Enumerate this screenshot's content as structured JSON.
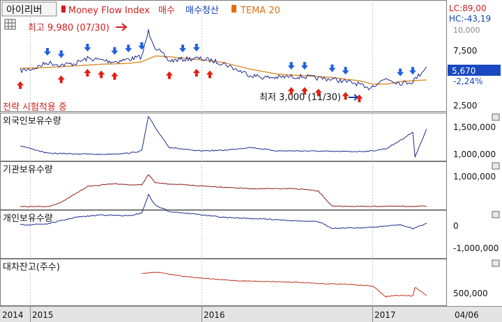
{
  "header": {
    "stock_name": "아이리버",
    "mfi_label": "Money Flow Index",
    "buy_label": "매수",
    "buy_liquidate_label": "매수청산",
    "tema_label": "TEMA 20",
    "lc": "LC:89,00",
    "hc": "HC:-43,19"
  },
  "annotations": {
    "high": "최고 9,980 (07/30)",
    "low": "최저 3,000 (11/30)",
    "strategy": "전략 시험적용 중"
  },
  "price_badge": {
    "value": "5,670",
    "change": "-2,24%"
  },
  "colors": {
    "price_line": "#1e2a8c",
    "tema": "#d98a2a",
    "buy_arrow": "#e02010",
    "sell_arrow": "#2060e0",
    "holdings": "#1e2a8c",
    "inst": "#8b1a1a",
    "loan": "#c0301e",
    "header_red": "#d02020",
    "header_blue": "#1040b0",
    "header_orange": "#e07010"
  },
  "chart_data": [
    {
      "type": "line",
      "title": "아이리버",
      "series": [
        {
          "name": "아이리버",
          "x": [
            "2014-10",
            "2014-11",
            "2014-12",
            "2015-01",
            "2015-02",
            "2015-03",
            "2015-04",
            "2015-05",
            "2015-06",
            "2015-07",
            "2015-07-30",
            "2015-08",
            "2015-09",
            "2015-10",
            "2015-11",
            "2015-12",
            "2016-01",
            "2016-02",
            "2016-03",
            "2016-04",
            "2016-05",
            "2016-06",
            "2016-07",
            "2016-08",
            "2016-09",
            "2016-10",
            "2016-11",
            "2016-11-30",
            "2016-12",
            "2017-01",
            "2017-02",
            "2017-03",
            "2017-04"
          ],
          "values": [
            5200,
            5500,
            6200,
            5900,
            6100,
            6700,
            6500,
            6300,
            6600,
            6900,
            9980,
            8000,
            6400,
            6600,
            6700,
            6500,
            6100,
            5300,
            4700,
            4400,
            4400,
            4500,
            4500,
            4300,
            4200,
            3900,
            3600,
            3000,
            3400,
            4300,
            3700,
            3900,
            5670
          ]
        },
        {
          "name": "TEMA 20",
          "x": [
            "2014-10",
            "2014-12",
            "2015-02",
            "2015-04",
            "2015-06",
            "2015-07",
            "2015-08",
            "2015-09",
            "2015-11",
            "2016-01",
            "2016-03",
            "2016-05",
            "2016-07",
            "2016-09",
            "2016-11",
            "2016-12",
            "2017-01",
            "2017-02",
            "2017-03",
            "2017-04"
          ],
          "values": [
            5500,
            5600,
            5800,
            6000,
            6100,
            6300,
            7000,
            6900,
            6600,
            6200,
            5400,
            4800,
            4600,
            4400,
            4000,
            3600,
            3600,
            3900,
            4000,
            4100
          ]
        }
      ],
      "yticks": [
        "7,500",
        "5,000",
        "2,500"
      ],
      "buy_signals": [
        "2014-10",
        "2015-01",
        "2015-03",
        "2015-04",
        "2015-05",
        "2015-09",
        "2015-11",
        "2015-12",
        "2016-06",
        "2016-07",
        "2016-08",
        "2016-10",
        "2016-11"
      ],
      "sell_signals": [
        "2014-12",
        "2015-01",
        "2015-03",
        "2015-05",
        "2015-06",
        "2015-07",
        "2015-10",
        "2015-11",
        "2016-06",
        "2016-07",
        "2016-09",
        "2016-10",
        "2017-02",
        "2017-03"
      ]
    },
    {
      "type": "line",
      "title": "외국인보유수량",
      "series": [
        {
          "name": "외국인보유수량",
          "x": [
            "2014-10",
            "2014-12",
            "2015-02",
            "2015-04",
            "2015-06",
            "2015-07",
            "2015-07-30",
            "2015-08",
            "2015-09",
            "2015-11",
            "2016-01",
            "2016-03",
            "2016-05",
            "2016-07",
            "2016-09",
            "2016-11",
            "2016-12",
            "2017-01",
            "2017-02",
            "2017-03",
            "2017-03-20",
            "2017-04"
          ],
          "values": [
            1150000,
            1020000,
            1010000,
            1000000,
            1020000,
            1060000,
            1650000,
            1450000,
            1120000,
            1060000,
            1070000,
            1120000,
            1060000,
            1060000,
            1050000,
            1050000,
            1060000,
            1100000,
            1240000,
            1380000,
            960000,
            1430000
          ]
        }
      ],
      "yticks": [
        "1,500,000",
        "1,000,000"
      ]
    },
    {
      "type": "line",
      "title": "기관보유수량",
      "series": [
        {
          "name": "기관보유수량",
          "x": [
            "2014-10",
            "2014-12",
            "2015-01",
            "2015-03",
            "2015-05",
            "2015-06",
            "2015-07",
            "2015-07-30",
            "2015-08",
            "2015-10",
            "2016-01",
            "2016-03",
            "2016-06",
            "2016-07",
            "2016-08",
            "2016-09",
            "2016-10",
            "2016-12",
            "2017-02",
            "2017-04"
          ],
          "values": [
            20000,
            20000,
            150000,
            650000,
            740000,
            700000,
            700000,
            1020000,
            760000,
            700000,
            630000,
            580000,
            580000,
            560000,
            500000,
            30000,
            30000,
            30000,
            30000,
            30000
          ]
        }
      ],
      "yticks": [
        "1,000,000"
      ]
    },
    {
      "type": "line",
      "title": "개인보유수량",
      "series": [
        {
          "name": "개인보유수량",
          "x": [
            "2014-10",
            "2014-12",
            "2015-02",
            "2015-04",
            "2015-06",
            "2015-07",
            "2015-07-30",
            "2015-08",
            "2015-09",
            "2015-11",
            "2016-01",
            "2016-03",
            "2016-05",
            "2016-07",
            "2016-08",
            "2016-09",
            "2016-11",
            "2016-12",
            "2017-02",
            "2017-03",
            "2017-04"
          ],
          "values": [
            -50000,
            -100000,
            -400000,
            -520000,
            -470000,
            -600000,
            -1450000,
            -950000,
            -680000,
            -550000,
            -400000,
            -350000,
            -300000,
            -220000,
            -200000,
            100000,
            80000,
            60000,
            -60000,
            120000,
            -120000
          ]
        }
      ],
      "yticks": [
        "0",
        "-1,000,000"
      ]
    },
    {
      "type": "line",
      "title": "대차잔고(주수)",
      "series": [
        {
          "name": "대차잔고(주수)",
          "x": [
            "2015-07",
            "2015-08",
            "2015-10",
            "2015-12",
            "2016-02",
            "2016-04",
            "2016-06",
            "2016-08",
            "2016-10",
            "2016-12",
            "2017-01",
            "2017-01-15",
            "2017-02",
            "2017-03",
            "2017-03-20",
            "2017-04"
          ],
          "values": [
            1120000,
            1180000,
            1040000,
            950000,
            890000,
            870000,
            850000,
            800000,
            780000,
            720000,
            350000,
            380000,
            420000,
            400000,
            680000,
            420000
          ]
        }
      ],
      "yticks": [
        "500,000"
      ]
    }
  ],
  "x_axis": {
    "labels": [
      "2014",
      "2015",
      "2016",
      "2017"
    ],
    "date_label": "04/06"
  }
}
